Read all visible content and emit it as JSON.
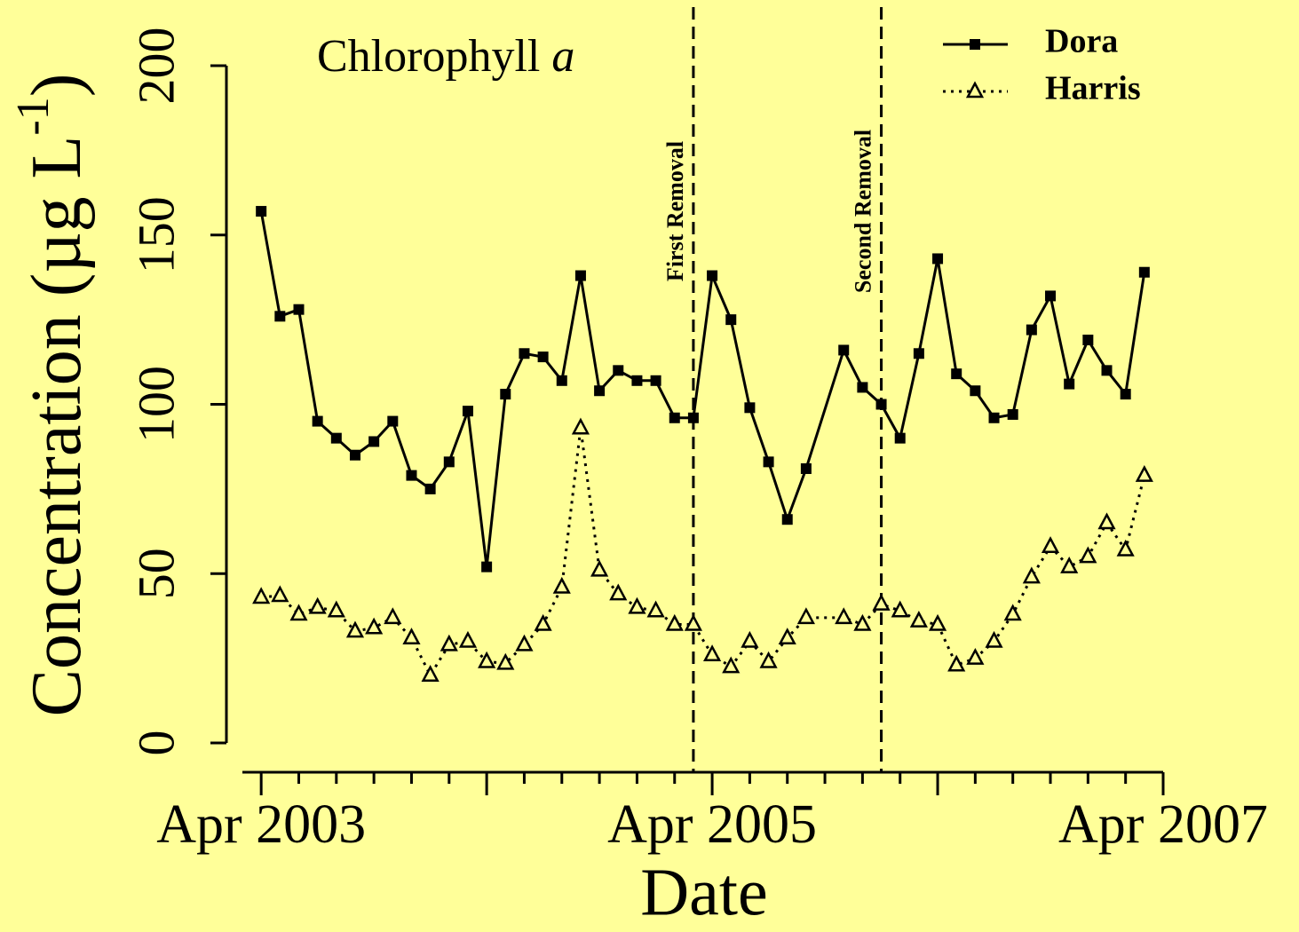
{
  "chart_data": {
    "type": "line",
    "title": "Chlorophyll a",
    "xlabel": "Date",
    "ylabel": "Concentration (µg L-1)",
    "x": [
      "2003-04",
      "2003-05",
      "2003-06",
      "2003-07",
      "2003-08",
      "2003-09",
      "2003-10",
      "2003-11",
      "2003-12",
      "2004-01",
      "2004-02",
      "2004-03",
      "2004-04",
      "2004-05",
      "2004-06",
      "2004-07",
      "2004-08",
      "2004-09",
      "2004-10",
      "2004-11",
      "2004-12",
      "2005-01",
      "2005-02",
      "2005-03",
      "2005-04",
      "2005-05",
      "2005-06",
      "2005-07",
      "2005-08",
      "2005-09",
      "2005-11",
      "2005-12",
      "2006-01",
      "2006-02",
      "2006-03",
      "2006-04",
      "2006-05",
      "2006-06",
      "2006-07",
      "2006-08",
      "2006-09",
      "2006-10",
      "2006-11",
      "2006-12",
      "2007-01",
      "2007-02",
      "2007-03"
    ],
    "series": [
      {
        "name": "Dora",
        "color": "#000000",
        "dash": "solid",
        "marker": "square",
        "values": [
          157,
          126,
          128,
          95,
          90,
          85,
          89,
          95,
          79,
          75,
          83,
          98,
          52,
          103,
          115,
          114,
          107,
          138,
          104,
          110,
          107,
          107,
          96,
          96,
          138,
          125,
          99,
          83,
          66,
          81,
          116,
          105,
          100,
          90,
          115,
          143,
          109,
          104,
          96,
          97,
          122,
          132,
          106,
          119,
          110,
          103,
          139
        ]
      },
      {
        "name": "Harris",
        "color": "#000000",
        "dash": "dotted",
        "marker": "triangle",
        "values": [
          43,
          43.5,
          38,
          40,
          39,
          33,
          34,
          37,
          31,
          20,
          29,
          30,
          24,
          23.5,
          29,
          35,
          46,
          93,
          51,
          44,
          40,
          39,
          35,
          35,
          26,
          22.5,
          30,
          24,
          31,
          37,
          37,
          35,
          41,
          39,
          36,
          35,
          23,
          25,
          30,
          38,
          49,
          58,
          52,
          55,
          65,
          57,
          79
        ]
      }
    ],
    "annotations": [
      {
        "text": "First Removal",
        "x": "2005-03"
      },
      {
        "text": "Second Removal",
        "x": "2006-01"
      }
    ],
    "xlim": [
      "2003-03",
      "2007-04"
    ],
    "xticks": [
      {
        "value": "2003-04",
        "label": "Apr 2003"
      },
      {
        "value": "2005-04",
        "label": "Apr 2005"
      },
      {
        "value": "2007-04",
        "label": "Apr 2007"
      }
    ],
    "xminorticks": [
      "2003-04",
      "2003-06",
      "2003-08",
      "2003-10",
      "2003-12",
      "2004-02",
      "2004-04",
      "2004-06",
      "2004-08",
      "2004-10",
      "2004-12",
      "2005-02",
      "2005-04",
      "2005-06",
      "2005-08",
      "2005-10",
      "2005-12",
      "2006-02",
      "2006-04",
      "2006-06",
      "2006-08",
      "2006-10",
      "2006-12",
      "2007-02",
      "2007-04"
    ],
    "ylim": [
      0,
      200
    ],
    "yticks": [
      0,
      50,
      100,
      150,
      200
    ],
    "legend": "top-right",
    "background": "#ffff99"
  }
}
